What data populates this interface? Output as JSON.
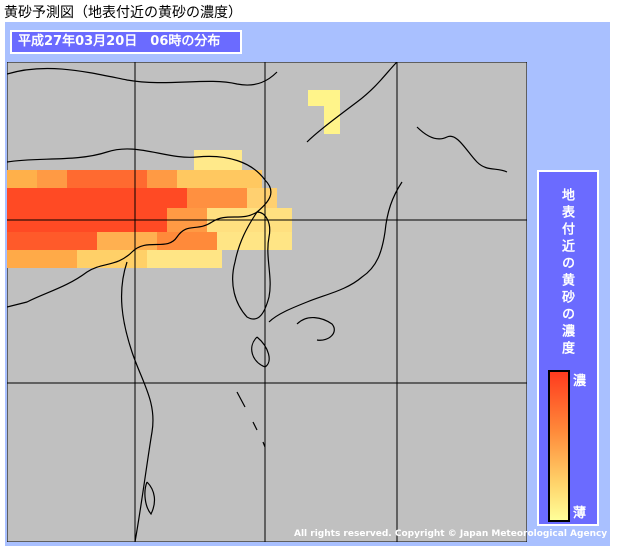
{
  "header": {
    "title": "黄砂予測図（地表付近の黄砂の濃度）"
  },
  "map": {
    "date_label": "平成27年03月20日　06時の分布",
    "legend": {
      "title": "地表付近の黄砂の濃度",
      "high": "濃",
      "low": "薄"
    },
    "copyright": "All rights reserved. Copyright © Japan Meteorological Agency"
  }
}
